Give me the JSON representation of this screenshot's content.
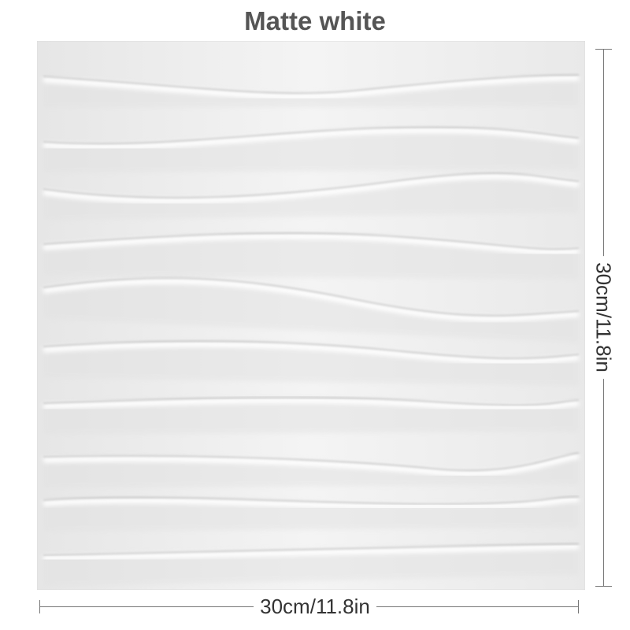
{
  "title": "Matte white",
  "dimensions": {
    "width_label": "30cm/11.8in",
    "height_label": "30cm/11.8in"
  },
  "colors": {
    "panel": "#f0f0f0",
    "title": "#555555",
    "dimension_line": "#777777"
  }
}
